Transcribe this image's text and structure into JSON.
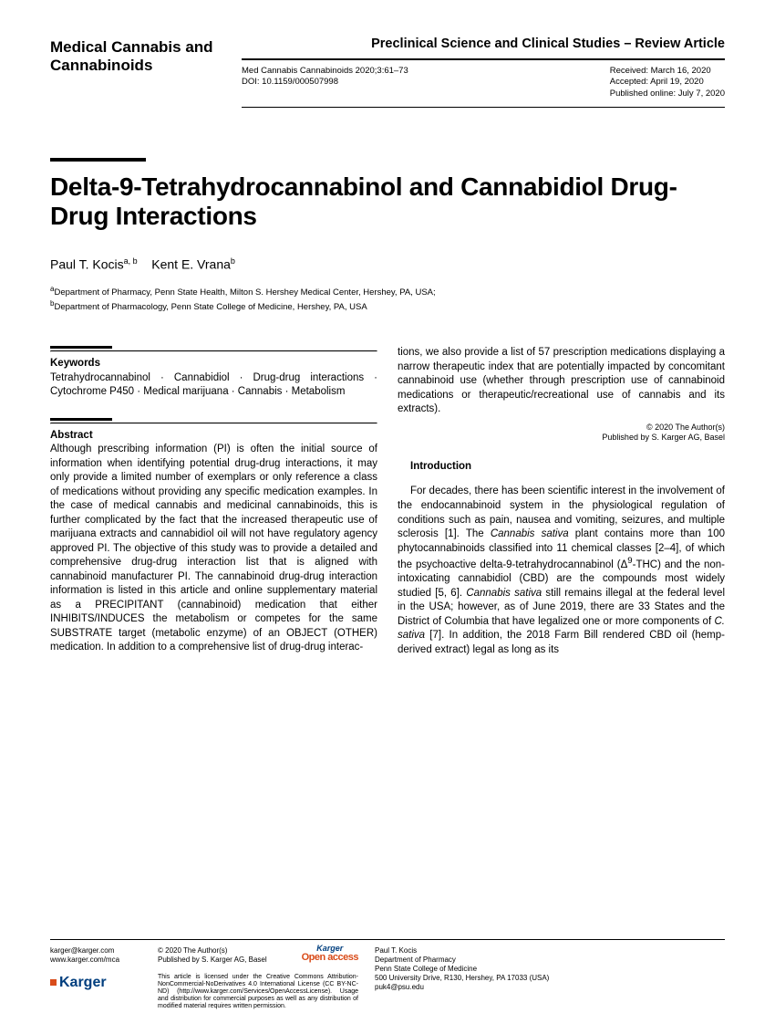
{
  "header": {
    "journal_name": "Medical Cannabis and Cannabinoids",
    "article_type": "Preclinical Science and Clinical Studies – Review Article",
    "citation": "Med Cannabis Cannabinoids 2020;3:61–73",
    "doi": "DOI: 10.1159/000507998",
    "received": "Received: March 16, 2020",
    "accepted": "Accepted: April 19, 2020",
    "published": "Published online: July 7, 2020"
  },
  "title": "Delta-9-Tetrahydrocannabinol and Cannabidiol Drug-Drug Interactions",
  "authors": {
    "a1_name": "Paul T. Kocis",
    "a1_sup": "a, b",
    "a2_name": "Kent E. Vrana",
    "a2_sup": "b"
  },
  "affiliations": {
    "a": "Department of Pharmacy, Penn State Health, Milton S. Hershey Medical Center, Hershey, PA, USA;",
    "b": "Department of Pharmacology, Penn State College of Medicine, Hershey, PA, USA"
  },
  "keywords": {
    "heading": "Keywords",
    "text": "Tetrahydrocannabinol · Cannabidiol · Drug-drug interactions · Cytochrome P450 · Medical marijuana · Cannabis · Metabolism"
  },
  "abstract": {
    "heading": "Abstract",
    "text": "Although prescribing information (PI) is often the initial source of information when identifying potential drug-drug interactions, it may only provide a limited number of exemplars or only reference a class of medications without providing any specific medication examples. In the case of medical cannabis and medicinal cannabinoids, this is further complicated by the fact that the increased therapeutic use of marijuana extracts and cannabidiol oil will not have regulatory agency approved PI. The objective of this study was to provide a detailed and comprehensive drug-drug interaction list that is aligned with cannabinoid manufacturer PI. The cannabinoid drug-drug interaction information is listed in this article and online supplementary material as a PRECIPITANT (cannabinoid) medication that either INHIBITS/INDUCES the metabolism or competes for the same SUBSTRATE target (metabolic enzyme) of an OBJECT (OTHER) medication. In addition to a comprehensive list of drug-drug interac-"
  },
  "continuation": "tions, we also provide a list of 57 prescription medications displaying a narrow therapeutic index that are potentially impacted by concomitant cannabinoid use (whether through prescription use of cannabinoid medications or therapeutic/recreational use of cannabis and its extracts).",
  "copyright_small": {
    "line1": "© 2020 The Author(s)",
    "line2": "Published by S. Karger AG, Basel"
  },
  "introduction": {
    "heading": "Introduction",
    "text_pre": "For decades, there has been scientific interest in the involvement of the endocannabinoid system in the physiological regulation of conditions such as pain, nausea and vomiting, seizures, and multiple sclerosis [1]. The ",
    "text_it1": "Cannabis sativa",
    "text_mid1": " plant contains more than 100 phytocannabinoids classified into 11 chemical classes [2–4], of which the psychoactive delta-9-tetrahydrocannabinol (Δ",
    "text_sup": "9",
    "text_mid2": "-THC) and the non-intoxicating cannabidiol (CBD) are the compounds most widely studied [5, 6]. ",
    "text_it2": "Cannabis sativa",
    "text_mid3": " still remains illegal at the federal level in the USA; however, as of June 2019, there are 33 States and the District of Columbia that have legalized one or more components of ",
    "text_it3": "C. sativa",
    "text_post": " [7]. In addition, the 2018 Farm Bill rendered CBD oil (hemp-derived extract) legal as long as its"
  },
  "footer": {
    "email": "karger@karger.com",
    "url": "www.karger.com/mca",
    "logo": "Karger",
    "copyright": "© 2020 The Author(s)",
    "publisher": "Published by S. Karger AG, Basel",
    "oa_brand": "Karger",
    "oa_label": "Open access",
    "license": "This article is licensed under the Creative Commons Attribution-NonCommercial-NoDerivatives 4.0 International License (CC BY-NC-ND) (http://www.karger.com/Services/OpenAccessLicense). Usage and distribution for commercial purposes as well as any distribution of modified material requires written permission.",
    "corr_name": "Paul T. Kocis",
    "corr_dept": "Department of Pharmacy",
    "corr_inst": "Penn State College of Medicine",
    "corr_addr": "500 University Drive, R130, Hershey, PA 17033 (USA)",
    "corr_email": "puk4@psu.edu"
  }
}
